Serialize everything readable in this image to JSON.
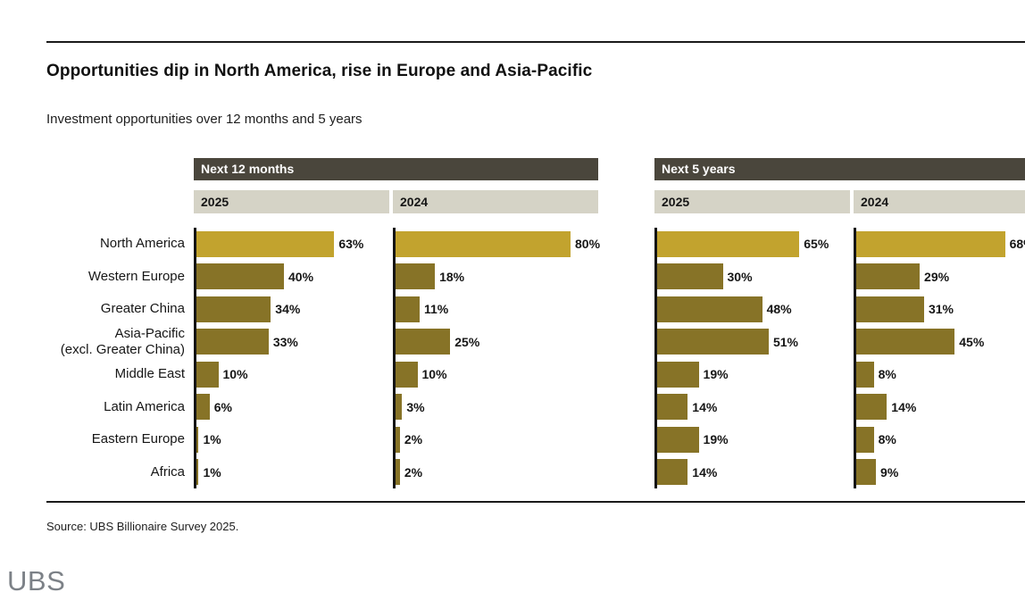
{
  "page": {
    "title": "Opportunities dip in North America, rise in Europe and Asia-Pacific",
    "subtitle": "Investment opportunities over 12 months and 5 years",
    "source": "Source: UBS Billionaire Survey 2025.",
    "logo": "UBS"
  },
  "colors": {
    "highlight_bar": "#C2A32E",
    "bar": "#877327",
    "header_dark_bg": "#4A463C",
    "header_dark_text": "#FFFFFF",
    "header_light_bg": "#D5D3C6",
    "axis": "#141414",
    "text": "#161616",
    "logo_gray": "#7C8187"
  },
  "chart_data": {
    "type": "bar",
    "orientation": "horizontal",
    "unit": "%",
    "title": "Opportunities dip in North America, rise in Europe and Asia-Pacific",
    "subtitle": "Investment opportunities over 12 months and 5 years",
    "categories": [
      "North America",
      "Western Europe",
      "Greater China",
      "Asia-Pacific (excl. Greater China)",
      "Middle East",
      "Latin America",
      "Eastern Europe",
      "Africa"
    ],
    "groups": [
      {
        "label": "Next 12 months",
        "series": [
          {
            "name": "2025",
            "values": [
              63,
              40,
              34,
              33,
              10,
              6,
              1,
              1
            ]
          },
          {
            "name": "2024",
            "values": [
              80,
              18,
              11,
              25,
              10,
              3,
              2,
              2
            ]
          }
        ]
      },
      {
        "label": "Next 5 years",
        "series": [
          {
            "name": "2025",
            "values": [
              65,
              30,
              48,
              51,
              19,
              14,
              19,
              14
            ]
          },
          {
            "name": "2024",
            "values": [
              68,
              29,
              31,
              45,
              8,
              14,
              8,
              9
            ]
          }
        ]
      }
    ],
    "highlight_category_index": 0,
    "xlim": [
      0,
      88
    ],
    "grid": false,
    "legend_position": "column-headers"
  }
}
